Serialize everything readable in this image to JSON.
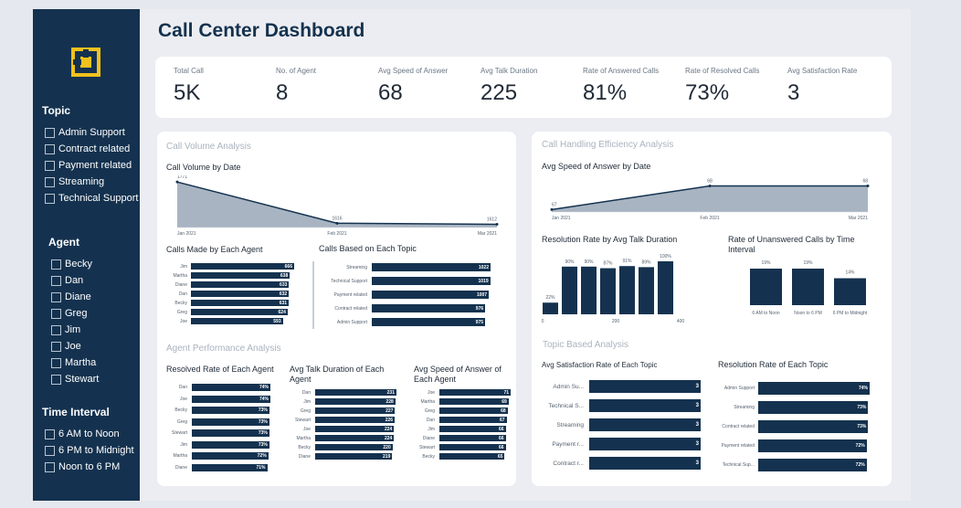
{
  "title": "Call Center Dashboard",
  "colors": {
    "navy": "#14324f",
    "area": "#a8b4c2",
    "accent": "#f2c11d"
  },
  "sidebar": {
    "logo_icon": "brand-logo-icon",
    "topic": {
      "title": "Topic",
      "items": [
        "Admin Support",
        "Contract related",
        "Payment related",
        "Streaming",
        "Technical Support"
      ]
    },
    "agent": {
      "title": "Agent",
      "items": [
        "Becky",
        "Dan",
        "Diane",
        "Greg",
        "Jim",
        "Joe",
        "Martha",
        "Stewart"
      ]
    },
    "time": {
      "title": "Time Interval",
      "items": [
        "6 AM to Noon",
        "6 PM to Midnight",
        "Noon to 6 PM"
      ]
    }
  },
  "kpis": [
    {
      "label": "Total Call",
      "value": "5K"
    },
    {
      "label": "No. of Agent",
      "value": "8"
    },
    {
      "label": "Avg Speed of Answer",
      "value": "68"
    },
    {
      "label": "Avg Talk Duration",
      "value": "225"
    },
    {
      "label": "Rate of Answered Calls",
      "value": "81%"
    },
    {
      "label": "Rate of Resolved Calls",
      "value": "73%"
    },
    {
      "label": "Avg Satisfaction Rate",
      "value": "3"
    }
  ],
  "sections": {
    "volume": "Call Volume Analysis",
    "efficiency": "Call Handling Efficiency Analysis",
    "agent_perf": "Agent Performance Analysis",
    "topic_based": "Topic Based Analysis"
  },
  "chart_data": [
    {
      "id": "volume_by_date",
      "type": "area",
      "title": "Call Volume by Date",
      "x": [
        "Jan 2021",
        "Feb 2021",
        "Mar 2021"
      ],
      "values": [
        1771,
        1616,
        1612
      ],
      "data_labels": [
        "1771",
        "1616",
        "1612"
      ]
    },
    {
      "id": "calls_by_agent",
      "type": "bar",
      "title": "Calls Made by Each Agent",
      "categories": [
        "Jim",
        "Martha",
        "Diane",
        "Dan",
        "Becky",
        "Greg",
        "Joe"
      ],
      "values": [
        666,
        638,
        633,
        632,
        631,
        624,
        593
      ]
    },
    {
      "id": "calls_by_topic",
      "type": "bar",
      "title": "Calls Based on Each Topic",
      "categories": [
        "Streaming",
        "Technical Support",
        "Payment related",
        "Contract related",
        "Admin Support"
      ],
      "values": [
        1022,
        1019,
        1007,
        976,
        975
      ]
    },
    {
      "id": "asa_by_date",
      "type": "area",
      "title": "Avg Speed of Answer by Date",
      "x": [
        "Jan 2021",
        "Feb 2021",
        "Mar 2021"
      ],
      "values": [
        67,
        68,
        68
      ],
      "data_labels": [
        "67",
        "68",
        "68"
      ]
    },
    {
      "id": "resolution_by_talk",
      "type": "bar",
      "title": "Resolution Rate by Avg Talk Duration",
      "values": [
        22,
        90,
        90,
        87,
        91,
        89,
        100
      ],
      "data_labels": [
        "22%",
        "90%",
        "90%",
        "87%",
        "91%",
        "89%",
        "100%"
      ],
      "x_ticks": [
        "0",
        "200",
        "400"
      ]
    },
    {
      "id": "unanswered_by_interval",
      "type": "bar",
      "title": "Rate of Unanswered Calls by Time Interval",
      "categories": [
        "6 AM to Noon",
        "Noon to 6 PM",
        "6 PM to Midnight"
      ],
      "values": [
        19,
        19,
        14
      ],
      "data_labels": [
        "19%",
        "19%",
        "14%"
      ]
    },
    {
      "id": "resolved_by_agent",
      "type": "bar",
      "title": "Resolved Rate of Each Agent",
      "categories": [
        "Dan",
        "Joe",
        "Becky",
        "Greg",
        "Stewart",
        "Jim",
        "Martha",
        "Diane"
      ],
      "values": [
        74,
        74,
        73,
        73,
        73,
        73,
        72,
        71
      ],
      "data_labels": [
        "74%",
        "74%",
        "73%",
        "73%",
        "73%",
        "73%",
        "72%",
        "71%"
      ]
    },
    {
      "id": "talk_by_agent",
      "type": "bar",
      "title": "Avg Talk Duration of Each Agent",
      "categories": [
        "Dan",
        "Jim",
        "Greg",
        "Stewart",
        "Joe",
        "Martha",
        "Becky",
        "Diane"
      ],
      "values": [
        231,
        228,
        227,
        226,
        224,
        224,
        220,
        219
      ]
    },
    {
      "id": "asa_by_agent",
      "type": "bar",
      "title": "Avg Speed of Answer of Each Agent",
      "categories": [
        "Joe",
        "Martha",
        "Greg",
        "Dan",
        "Jim",
        "Diane",
        "Stewart",
        "Becky"
      ],
      "values": [
        71,
        69,
        68,
        67,
        66,
        66,
        66,
        65
      ]
    },
    {
      "id": "satisfaction_by_topic",
      "type": "bar",
      "title": "Avg Satisfaction Rate of Each Topic",
      "categories": [
        "Admin Su...",
        "Technical S...",
        "Streaming",
        "Payment r...",
        "Contract r..."
      ],
      "values": [
        3,
        3,
        3,
        3,
        3
      ]
    },
    {
      "id": "resolution_by_topic",
      "type": "bar",
      "title": "Resolution Rate of Each Topic",
      "categories": [
        "Admin Support",
        "Streaming",
        "Contract related",
        "Payment related",
        "Technical Sup..."
      ],
      "values": [
        74,
        73,
        73,
        72,
        72
      ],
      "data_labels": [
        "74%",
        "73%",
        "73%",
        "72%",
        "72%"
      ]
    }
  ]
}
